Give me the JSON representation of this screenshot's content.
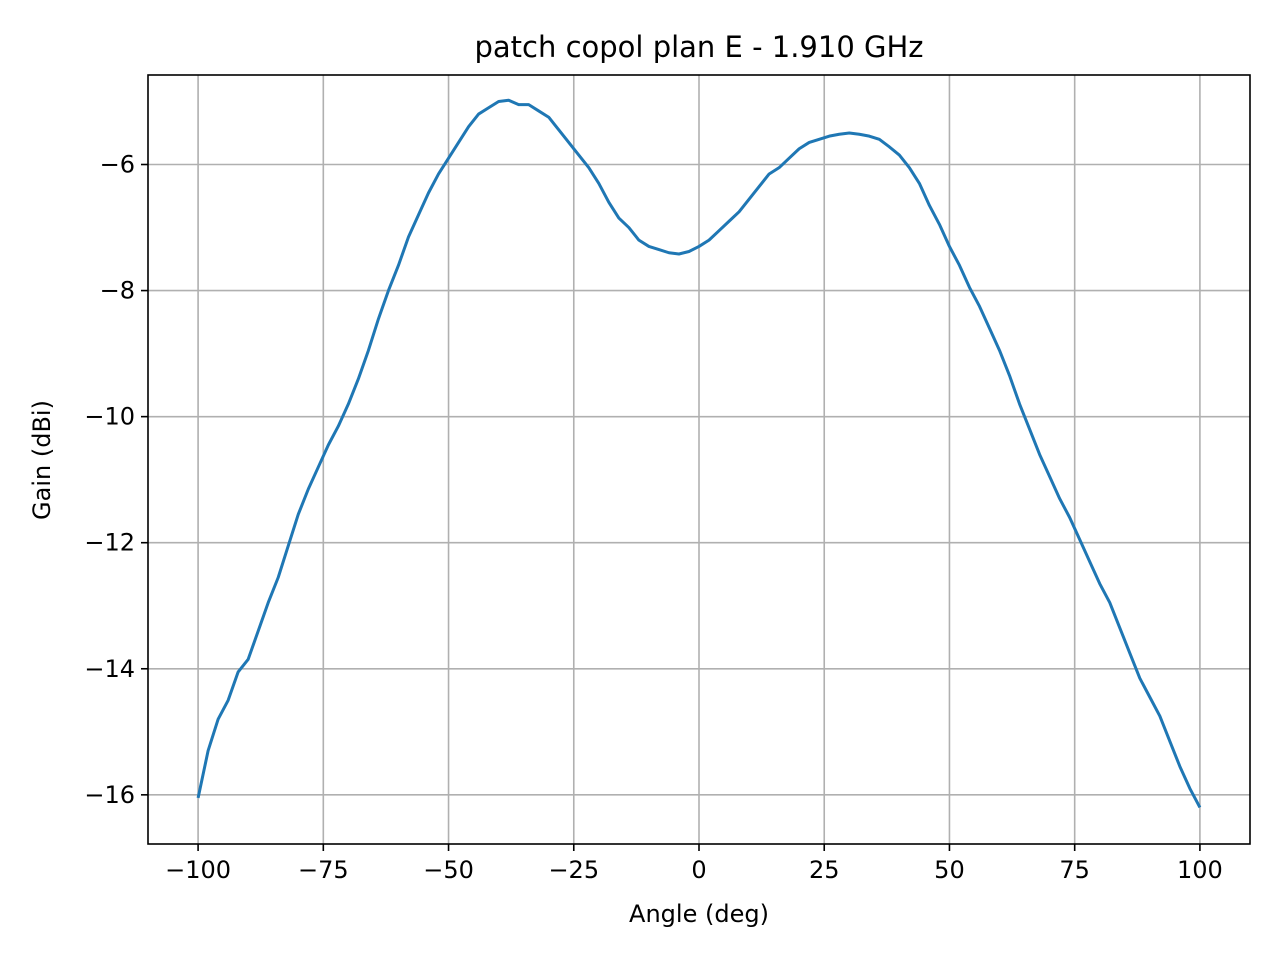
{
  "chart_data": {
    "type": "line",
    "title": "patch copol plan E - 1.910 GHz",
    "xlabel": "Angle (deg)",
    "ylabel": "Gain (dBi)",
    "xlim": [
      -110,
      110
    ],
    "ylim": [
      -16.78,
      -4.58
    ],
    "xticks": [
      -100,
      -75,
      -50,
      -25,
      0,
      25,
      50,
      75,
      100
    ],
    "xtick_labels": [
      "−100",
      "−75",
      "−50",
      "−25",
      "0",
      "25",
      "50",
      "75",
      "100"
    ],
    "yticks": [
      -16,
      -14,
      -12,
      -10,
      -8,
      -6
    ],
    "ytick_labels": [
      "−16",
      "−14",
      "−12",
      "−10",
      "−8",
      "−6"
    ],
    "grid": true,
    "series": [
      {
        "color": "#1f77b4",
        "x": [
          -100,
          -98,
          -96,
          -94,
          -92,
          -90,
          -88,
          -86,
          -84,
          -82,
          -80,
          -78,
          -76,
          -74,
          -72,
          -70,
          -68,
          -66,
          -64,
          -62,
          -60,
          -58,
          -56,
          -54,
          -52,
          -50,
          -48,
          -46,
          -44,
          -42,
          -40,
          -38,
          -36,
          -34,
          -32,
          -30,
          -28,
          -26,
          -24,
          -22,
          -20,
          -18,
          -16,
          -14,
          -12,
          -10,
          -8,
          -6,
          -4,
          -2,
          0,
          2,
          4,
          6,
          8,
          10,
          12,
          14,
          16,
          18,
          20,
          22,
          24,
          26,
          28,
          30,
          32,
          34,
          36,
          38,
          40,
          42,
          44,
          46,
          48,
          50,
          52,
          54,
          56,
          58,
          60,
          62,
          64,
          66,
          68,
          70,
          72,
          74,
          76,
          78,
          80,
          82,
          84,
          86,
          88,
          90,
          92,
          94,
          96,
          98,
          100
        ],
        "y": [
          -16.05,
          -15.3,
          -14.8,
          -14.5,
          -14.05,
          -13.85,
          -13.4,
          -12.95,
          -12.55,
          -12.05,
          -11.55,
          -11.15,
          -10.8,
          -10.45,
          -10.15,
          -9.8,
          -9.4,
          -8.95,
          -8.45,
          -8.0,
          -7.6,
          -7.15,
          -6.8,
          -6.45,
          -6.15,
          -5.9,
          -5.65,
          -5.4,
          -5.2,
          -5.1,
          -5.0,
          -4.98,
          -5.05,
          -5.05,
          -5.15,
          -5.25,
          -5.45,
          -5.65,
          -5.85,
          -6.05,
          -6.3,
          -6.6,
          -6.85,
          -7.0,
          -7.2,
          -7.3,
          -7.35,
          -7.4,
          -7.42,
          -7.38,
          -7.3,
          -7.2,
          -7.05,
          -6.9,
          -6.75,
          -6.55,
          -6.35,
          -6.15,
          -6.05,
          -5.9,
          -5.75,
          -5.65,
          -5.6,
          -5.55,
          -5.52,
          -5.5,
          -5.52,
          -5.55,
          -5.6,
          -5.72,
          -5.85,
          -6.05,
          -6.3,
          -6.65,
          -6.95,
          -7.3,
          -7.6,
          -7.95,
          -8.25,
          -8.6,
          -8.95,
          -9.35,
          -9.8,
          -10.2,
          -10.6,
          -10.95,
          -11.3,
          -11.6,
          -11.95,
          -12.3,
          -12.65,
          -12.95,
          -13.35,
          -13.75,
          -14.15,
          -14.45,
          -14.75,
          -15.15,
          -15.55,
          -15.9,
          -16.2
        ]
      }
    ]
  }
}
